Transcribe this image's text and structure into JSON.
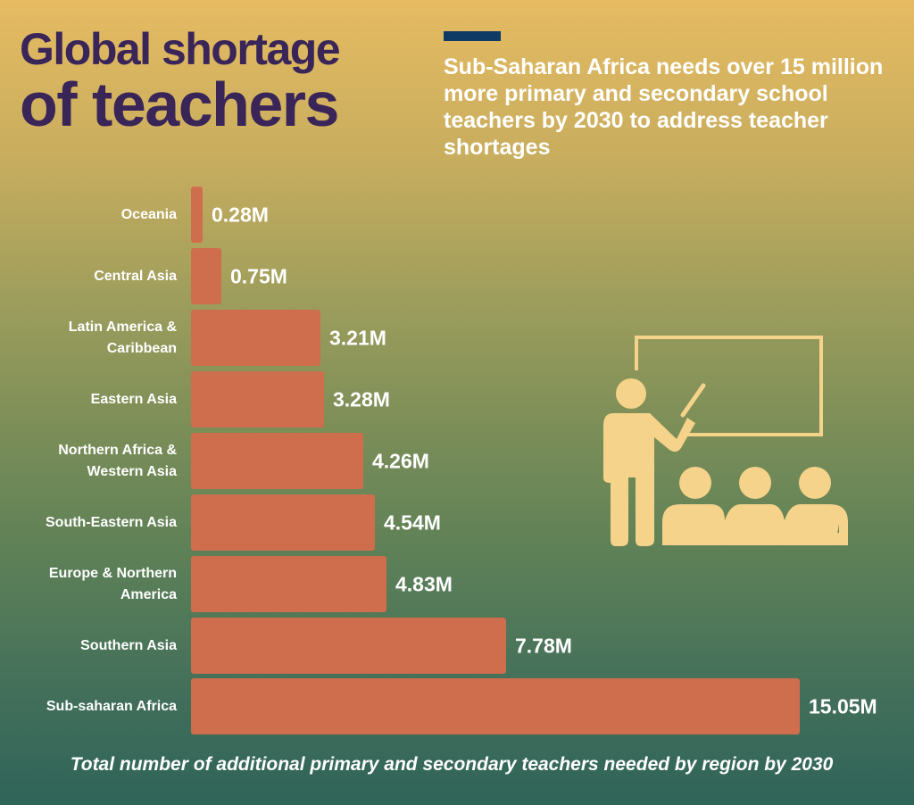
{
  "header": {
    "title_line1": "Global shortage",
    "title_line2": "of teachers",
    "subtitle": "Sub-Saharan Africa needs over 15 million more primary and secondary school teachers by 2030 to address teacher shortages"
  },
  "colors": {
    "title": "#3a2558",
    "accent_bar": "#0f3a66",
    "bar": "#cf6e4c",
    "illustration": "#f6d38a",
    "text": "#ffffff"
  },
  "illustration": {
    "icon": "teacher-at-whiteboard-icon"
  },
  "rows": [
    {
      "label": "Oceania",
      "value_label": "0.28M"
    },
    {
      "label": "Central Asia",
      "value_label": "0.75M"
    },
    {
      "label": "Latin America & Caribbean",
      "value_label": "3.21M"
    },
    {
      "label": "Eastern Asia",
      "value_label": "3.28M"
    },
    {
      "label": "Northern Africa & Western Asia",
      "value_label": "4.26M"
    },
    {
      "label": "South-Eastern Asia",
      "value_label": "4.54M"
    },
    {
      "label": "Europe & Northern America",
      "value_label": "4.83M"
    },
    {
      "label": "Southern Asia",
      "value_label": "7.78M"
    },
    {
      "label": "Sub-saharan Africa",
      "value_label": "15.05M"
    }
  ],
  "caption": "Total number of additional primary and secondary teachers needed by region by 2030",
  "chart_data": {
    "type": "bar",
    "orientation": "horizontal",
    "title": "Global shortage of teachers",
    "subtitle": "Sub-Saharan Africa needs over 15 million more primary and secondary school teachers by 2030 to address teacher shortages",
    "categories": [
      "Oceania",
      "Central Asia",
      "Latin America & Caribbean",
      "Eastern Asia",
      "Northern Africa & Western Asia",
      "South-Eastern Asia",
      "Europe & Northern America",
      "Southern Asia",
      "Sub-saharan Africa"
    ],
    "values": [
      0.28,
      0.75,
      3.21,
      3.28,
      4.26,
      4.54,
      4.83,
      7.78,
      15.05
    ],
    "unit": "million teachers",
    "data_labels": [
      "0.28M",
      "0.75M",
      "3.21M",
      "3.28M",
      "4.26M",
      "4.54M",
      "4.83M",
      "7.78M",
      "15.05M"
    ],
    "xlabel": "Total number of additional primary and secondary teachers needed by region by 2030",
    "ylabel": "",
    "grid": false,
    "legend": "none"
  }
}
